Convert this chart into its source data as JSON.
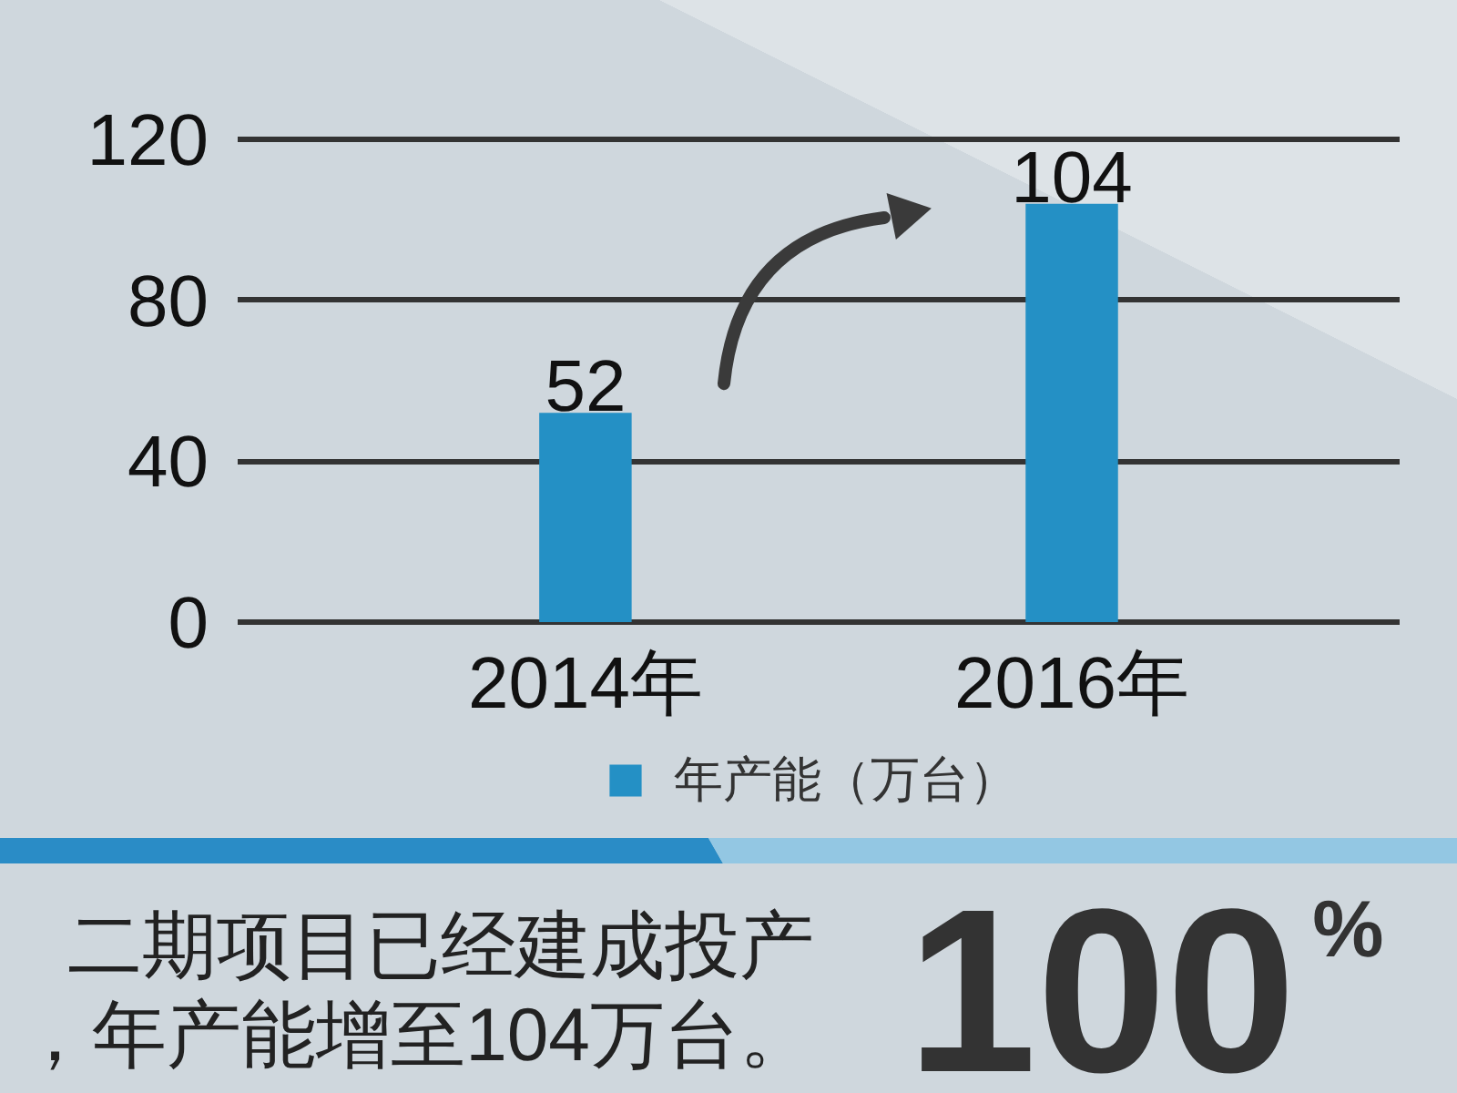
{
  "chart_data": {
    "type": "bar",
    "categories": [
      "2014年",
      "2016年"
    ],
    "series": [
      {
        "name": "年产能（万台）",
        "color": "#2490c5",
        "values": [
          52,
          104
        ]
      }
    ],
    "ylim": [
      0,
      120
    ],
    "yticks": [
      0,
      40,
      80,
      120
    ],
    "grid": "y",
    "legend": "bottom",
    "data_labels": true,
    "annotations": [
      "二期项目已经建成投产，年产能增至104万台。",
      "100$^{%}$"
    ]
  }
}
